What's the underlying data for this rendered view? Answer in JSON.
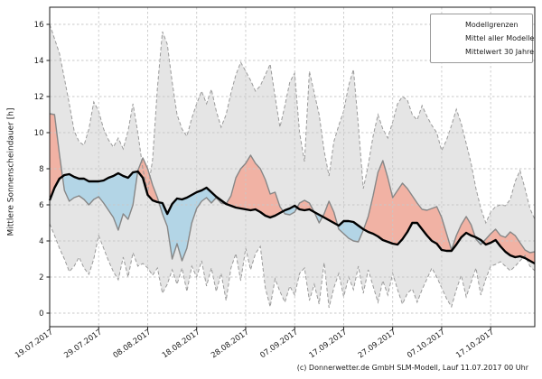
{
  "footer": {
    "text": "(c) Donnerwetter.de GmbH SLM-Modell, Lauf 11.07.2017 00 Uhr"
  },
  "legend": {
    "items": [
      {
        "label": "Modellgrenzen",
        "style": "dashed-gray"
      },
      {
        "label": "Mittel aller Modelle",
        "style": "solid-gray"
      },
      {
        "label": "Mittelwert 30 Jahre",
        "style": "solid-black"
      }
    ]
  },
  "chart_data": {
    "type": "line",
    "title": "",
    "xlabel": "",
    "ylabel": "Mittlere Sonnenscheindauer [h]",
    "ylim": [
      0,
      16
    ],
    "y_ticks": [
      0,
      2,
      4,
      6,
      8,
      10,
      12,
      14,
      16
    ],
    "grid": true,
    "legend_position": "top-right",
    "x_unit": "days since 19.07.2017 (daily values)",
    "x_ticks": {
      "labels": [
        "19.07.2017",
        "29.07.2017",
        "08.08.2017",
        "18.08.2017",
        "28.08.2017",
        "07.09.2017",
        "17.09.2017",
        "27.09.2017",
        "07.10.2017",
        "17.10.2017"
      ],
      "days": [
        0,
        10,
        20,
        30,
        40,
        50,
        60,
        70,
        80,
        90
      ]
    },
    "colors": {
      "band_fill": "#e5e5e5",
      "band_edge": "#9a9a9a",
      "above_fill": "#f1b2a4",
      "below_fill": "#b3d5e6",
      "model_mean_line": "#878787",
      "mean30_line": "#000000",
      "grid_line": "#c8c8c8"
    },
    "series": [
      {
        "name": "Modellgrenzen (oberes Limit)",
        "style": "dashed-gray",
        "values": [
          16.0,
          15.2,
          14.4,
          13.0,
          11.6,
          10.1,
          9.5,
          9.3,
          10.2,
          11.7,
          11.2,
          10.2,
          9.6,
          9.2,
          9.7,
          9.1,
          10.1,
          11.6,
          10.0,
          8.0,
          6.7,
          8.5,
          12.5,
          15.6,
          14.9,
          12.8,
          11.0,
          10.2,
          9.8,
          10.8,
          11.6,
          12.3,
          11.6,
          12.4,
          11.2,
          10.3,
          11.0,
          12.2,
          13.2,
          13.9,
          13.4,
          12.9,
          12.3,
          12.6,
          13.2,
          13.8,
          12.0,
          10.3,
          11.5,
          12.8,
          13.3,
          10.0,
          8.4,
          13.4,
          12.2,
          11.0,
          9.0,
          7.6,
          9.5,
          10.4,
          11.2,
          12.6,
          13.5,
          10.4,
          6.9,
          8.2,
          9.8,
          11.0,
          10.2,
          9.7,
          10.6,
          11.6,
          12.0,
          11.8,
          11.0,
          10.7,
          11.5,
          10.9,
          10.4,
          10.0,
          9.0,
          9.6,
          10.4,
          11.3,
          10.5,
          9.4,
          8.3,
          6.9,
          5.8,
          5.0,
          5.6,
          5.9,
          6.0,
          5.95,
          6.3,
          7.3,
          7.9,
          6.9,
          5.8,
          5.2
        ]
      },
      {
        "name": "Modellgrenzen (unteres Limit)",
        "style": "dashed-gray",
        "values": [
          4.95,
          4.3,
          3.6,
          3.0,
          2.3,
          2.6,
          3.1,
          2.5,
          2.15,
          3.0,
          4.3,
          3.6,
          2.9,
          2.3,
          1.85,
          3.1,
          2.0,
          3.35,
          2.6,
          2.75,
          2.5,
          2.1,
          2.5,
          1.1,
          1.6,
          2.4,
          1.6,
          2.5,
          1.2,
          2.6,
          2.0,
          2.9,
          1.5,
          2.5,
          1.2,
          2.2,
          0.7,
          2.5,
          3.3,
          1.8,
          3.6,
          2.4,
          3.3,
          3.7,
          1.4,
          0.35,
          1.9,
          1.2,
          0.6,
          1.5,
          1.0,
          2.2,
          2.5,
          0.7,
          1.6,
          0.5,
          2.8,
          0.3,
          1.4,
          2.2,
          0.9,
          2.0,
          1.3,
          2.6,
          1.1,
          2.4,
          1.5,
          0.6,
          1.8,
          1.0,
          2.2,
          1.3,
          0.5,
          1.1,
          1.35,
          0.6,
          1.3,
          1.9,
          2.5,
          2.0,
          1.4,
          0.8,
          0.35,
          1.3,
          2.1,
          0.9,
          1.7,
          2.5,
          1.0,
          1.9,
          2.6,
          2.7,
          2.85,
          2.6,
          2.35,
          2.6,
          2.9,
          3.2,
          2.6,
          2.35
        ]
      },
      {
        "name": "Mittel aller Modelle",
        "style": "solid-gray",
        "values": [
          11.05,
          11.0,
          8.8,
          6.8,
          6.2,
          6.4,
          6.5,
          6.3,
          6.0,
          6.3,
          6.45,
          6.1,
          5.7,
          5.3,
          4.6,
          5.5,
          5.2,
          6.0,
          7.9,
          8.6,
          8.0,
          7.1,
          6.4,
          5.5,
          4.8,
          3.0,
          3.85,
          2.9,
          3.6,
          5.0,
          5.8,
          6.2,
          6.4,
          6.1,
          6.4,
          6.1,
          6.05,
          6.5,
          7.5,
          8.0,
          8.3,
          8.75,
          8.3,
          8.0,
          7.4,
          6.6,
          6.7,
          5.9,
          5.5,
          5.45,
          5.6,
          6.1,
          6.25,
          6.1,
          5.6,
          5.0,
          5.5,
          6.2,
          5.6,
          4.65,
          4.4,
          4.15,
          4.0,
          3.95,
          4.6,
          5.35,
          6.5,
          7.8,
          8.45,
          7.5,
          6.4,
          6.8,
          7.2,
          6.9,
          6.5,
          6.1,
          5.75,
          5.7,
          5.8,
          5.9,
          5.3,
          4.4,
          3.5,
          4.3,
          4.9,
          5.35,
          4.9,
          4.1,
          3.8,
          4.1,
          4.4,
          4.65,
          4.3,
          4.2,
          4.5,
          4.3,
          3.9,
          3.5,
          3.35,
          3.4
        ]
      },
      {
        "name": "Mittelwert 30 Jahre",
        "style": "solid-black",
        "values": [
          6.25,
          6.95,
          7.45,
          7.65,
          7.7,
          7.55,
          7.45,
          7.45,
          7.3,
          7.3,
          7.3,
          7.35,
          7.5,
          7.6,
          7.75,
          7.6,
          7.5,
          7.8,
          7.85,
          7.5,
          6.55,
          6.25,
          6.15,
          6.1,
          5.5,
          6.05,
          6.35,
          6.3,
          6.4,
          6.55,
          6.7,
          6.8,
          6.95,
          6.7,
          6.45,
          6.25,
          6.05,
          5.95,
          5.85,
          5.8,
          5.75,
          5.7,
          5.75,
          5.6,
          5.4,
          5.3,
          5.4,
          5.55,
          5.7,
          5.8,
          5.95,
          5.75,
          5.7,
          5.75,
          5.6,
          5.45,
          5.3,
          5.15,
          5.0,
          4.85,
          5.1,
          5.1,
          5.05,
          4.85,
          4.65,
          4.5,
          4.4,
          4.25,
          4.05,
          3.95,
          3.85,
          3.8,
          4.1,
          4.5,
          5.0,
          5.0,
          4.65,
          4.3,
          4.0,
          3.85,
          3.5,
          3.45,
          3.45,
          3.8,
          4.2,
          4.45,
          4.3,
          4.2,
          4.05,
          3.8,
          3.9,
          4.05,
          3.7,
          3.4,
          3.2,
          3.1,
          3.15,
          3.05,
          2.9,
          2.75
        ]
      }
    ]
  }
}
